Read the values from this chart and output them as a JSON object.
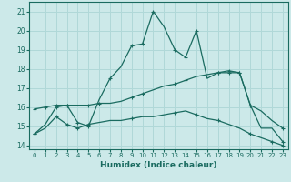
{
  "xlabel": "Humidex (Indice chaleur)",
  "xlim": [
    -0.5,
    23.5
  ],
  "ylim": [
    13.8,
    21.5
  ],
  "yticks": [
    14,
    15,
    16,
    17,
    18,
    19,
    20,
    21
  ],
  "xticks": [
    0,
    1,
    2,
    3,
    4,
    5,
    6,
    7,
    8,
    9,
    10,
    11,
    12,
    13,
    14,
    15,
    16,
    17,
    18,
    19,
    20,
    21,
    22,
    23
  ],
  "bg_color": "#cce9e9",
  "grid_color": "#b0d8d8",
  "line_color": "#1a6b60",
  "line1_y": [
    14.6,
    15.1,
    16.0,
    16.1,
    15.2,
    15.0,
    16.4,
    17.5,
    18.1,
    19.2,
    19.3,
    21.0,
    20.2,
    19.0,
    18.6,
    20.0,
    17.5,
    17.8,
    17.8,
    17.8,
    16.1,
    14.9,
    14.9,
    14.2
  ],
  "line2_y": [
    15.9,
    16.0,
    16.1,
    16.1,
    16.1,
    16.1,
    16.2,
    16.2,
    16.3,
    16.5,
    16.7,
    16.9,
    17.1,
    17.2,
    17.4,
    17.6,
    17.7,
    17.8,
    17.9,
    17.8,
    16.1,
    15.8,
    15.3,
    14.9
  ],
  "line3_y": [
    14.6,
    14.9,
    15.5,
    15.1,
    14.9,
    15.1,
    15.2,
    15.3,
    15.3,
    15.4,
    15.5,
    15.5,
    15.6,
    15.7,
    15.8,
    15.6,
    15.4,
    15.3,
    15.1,
    14.9,
    14.6,
    14.4,
    14.2,
    14.0
  ],
  "markers1": [
    0,
    2,
    3,
    4,
    5,
    7,
    9,
    10,
    11,
    13,
    14,
    15,
    17,
    18,
    19,
    20,
    23
  ],
  "markers2": [
    0,
    1,
    2,
    3,
    5,
    6,
    9,
    10,
    13,
    14,
    17,
    18,
    19,
    20,
    23
  ],
  "markers3": [
    0,
    2,
    3,
    4,
    5,
    9,
    13,
    15,
    17,
    20,
    22,
    23
  ]
}
